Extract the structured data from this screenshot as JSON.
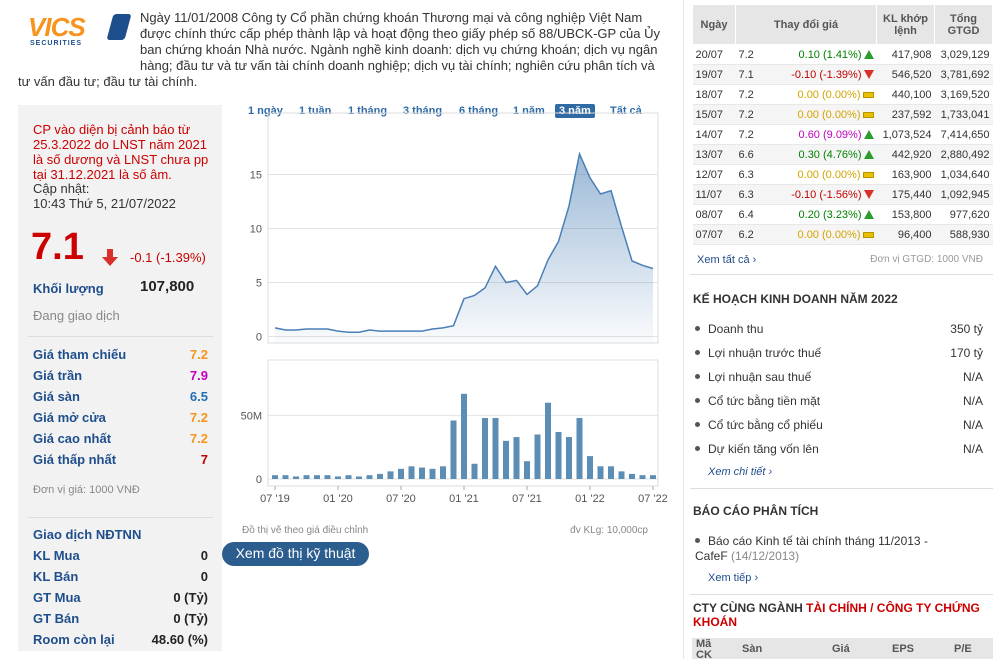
{
  "logo": {
    "name": "VICS",
    "tagline": "SECURITIES"
  },
  "intro": "Ngày 11/01/2008 Công ty Cổ phần chứng khoán Thương mại và công nghiệp Việt Nam được chính thức cấp phép thành lập và hoạt động theo giấy phép số 88/UBCK-GP của Ủy ban chứng khoán Nhà nước. Ngành nghề kinh doanh: dịch vụ chứng khoán; dịch vụ ngân hàng; đầu tư và tư vấn tài chính doanh nghiệp; dịch vụ tài chính; nghiên cứu phân tích và tư vấn đầu tư; đầu tư tài chính.",
  "stock": {
    "warning": "CP vào diện bị cảnh báo từ 25.3.2022 do LNST năm 2021 là số dương và LNST chưa pp tại 31.12.2021 là số âm.",
    "updated_label": "Cập nhật:",
    "updated_time": "10:43 Thứ 5, 21/07/2022",
    "price": "7.1",
    "change": "-0.1 (-1.39%)",
    "volume_label": "Khối lượng",
    "volume": "107,800",
    "status": "Đang giao dịch",
    "prices": [
      {
        "label": "Giá tham chiếu",
        "value": "7.2",
        "color": "#f7941d"
      },
      {
        "label": "Giá trần",
        "value": "7.9",
        "color": "#c000c0"
      },
      {
        "label": "Giá sàn",
        "value": "6.5",
        "color": "#1f6fb5"
      },
      {
        "label": "Giá mở cửa",
        "value": "7.2",
        "color": "#f7941d"
      },
      {
        "label": "Giá cao nhất",
        "value": "7.2",
        "color": "#f7941d"
      },
      {
        "label": "Giá thấp nhất",
        "value": "7",
        "color": "#c00000"
      }
    ],
    "unit": "Đơn vị giá: 1000 VNĐ",
    "foreign": {
      "title": "Giao dịch NĐTNN",
      "rows": [
        {
          "label": "KL Mua",
          "value": "0"
        },
        {
          "label": "KL Bán",
          "value": "0"
        },
        {
          "label": "GT Mua",
          "value": "0 (Tỷ)"
        },
        {
          "label": "GT Bán",
          "value": "0 (Tỷ)"
        },
        {
          "label": "Room còn lại",
          "value": "48.60 (%)"
        }
      ]
    }
  },
  "tabs": {
    "items": [
      "1 ngày",
      "1 tuần",
      "1 tháng",
      "3 tháng",
      "6 tháng",
      "1 năm",
      "3 năm",
      "Tất cả"
    ],
    "selected": 6
  },
  "chart_data": [
    {
      "type": "area",
      "color": "#4a7fb5",
      "values": [
        0.8,
        0.6,
        0.6,
        0.7,
        0.7,
        0.7,
        0.5,
        0.4,
        0.4,
        0.6,
        0.5,
        0.5,
        0.5,
        0.5,
        0.5,
        0.7,
        0.8,
        1.0,
        3.5,
        3.8,
        4.5,
        6.5,
        5.0,
        5.2,
        3.9,
        4.7,
        7.1,
        8.8,
        12.1,
        16.9,
        14.7,
        13.2,
        13.5,
        10.2,
        7.0,
        6.6,
        6.3
      ],
      "ylim": [
        -0.6,
        20.7
      ],
      "yticks": [
        0,
        5,
        10,
        15
      ],
      "grid": true
    },
    {
      "type": "bar",
      "color": "#5b8db5",
      "categories": [
        "07 '19",
        null,
        null,
        null,
        null,
        null,
        "01 '20",
        null,
        null,
        null,
        null,
        null,
        "07 '20",
        null,
        null,
        null,
        null,
        null,
        "01 '21",
        null,
        null,
        null,
        null,
        null,
        "07 '21",
        null,
        null,
        null,
        null,
        null,
        "01 '22",
        null,
        null,
        null,
        null,
        null,
        "07 '22"
      ],
      "values": [
        3,
        3,
        2,
        3,
        3,
        3,
        2,
        3,
        2,
        3,
        4,
        6,
        8,
        10,
        9,
        8,
        10,
        46,
        67,
        12,
        48,
        48,
        30,
        33,
        14,
        35,
        60,
        37,
        33,
        48,
        18,
        10,
        10,
        6,
        4,
        3,
        3
      ],
      "ylim": [
        -5.5,
        93.6
      ],
      "yticks": [
        0,
        {
          "value": 50,
          "label": "50M"
        }
      ],
      "grid": true
    }
  ],
  "chart_notes": {
    "left": "Đồ thị vẽ theo giá điều chỉnh",
    "right": "đv KLg: 10,000cp",
    "button": "Xem đồ thị kỹ thuật"
  },
  "trading": {
    "headers": [
      "Ngày",
      "Thay đổi giá",
      "KL khớp lệnh",
      "Tổng GTGD"
    ],
    "rows": [
      {
        "cells": [
          "20/07",
          "7.2",
          "0.10 (1.41%)",
          "417,908",
          "3,029,129"
        ],
        "color": "#008000"
      },
      {
        "cells": [
          "19/07",
          "7.1",
          "-0.10 (-1.39%)",
          "546,520",
          "3,781,692"
        ],
        "color": "#c00000"
      },
      {
        "cells": [
          "18/07",
          "7.2",
          "0.00 (0.00%)",
          "440,100",
          "3,169,520"
        ],
        "color": "#d4a300"
      },
      {
        "cells": [
          "15/07",
          "7.2",
          "0.00 (0.00%)",
          "237,592",
          "1,733,041"
        ],
        "color": "#d4a300"
      },
      {
        "cells": [
          "14/07",
          "7.2",
          "0.60 (9.09%)",
          "1,073,524",
          "7,414,650"
        ],
        "color": "#c000c0"
      },
      {
        "cells": [
          "13/07",
          "6.6",
          "0.30 (4.76%)",
          "442,920",
          "2,880,492"
        ],
        "color": "#008000"
      },
      {
        "cells": [
          "12/07",
          "6.3",
          "0.00 (0.00%)",
          "163,900",
          "1,034,640"
        ],
        "color": "#d4a300"
      },
      {
        "cells": [
          "11/07",
          "6.3",
          "-0.10 (-1.56%)",
          "175,440",
          "1,092,945"
        ],
        "color": "#c00000"
      },
      {
        "cells": [
          "08/07",
          "6.4",
          "0.20 (3.23%)",
          "153,800",
          "977,620"
        ],
        "color": "#008000"
      },
      {
        "cells": [
          "07/07",
          "6.2",
          "0.00 (0.00%)",
          "96,400",
          "588,930"
        ],
        "color": "#d4a300"
      }
    ],
    "more": "Xem tất cả",
    "unit": "Đơn vị GTGD: 1000 VNĐ"
  },
  "plan": {
    "title": "KẾ HOẠCH KINH DOANH NĂM 2022",
    "rows": [
      {
        "label": "Doanh thu",
        "value": "350 tỷ"
      },
      {
        "label": "Lợi nhuận trước thuế",
        "value": "170 tỷ"
      },
      {
        "label": "Lợi nhuận sau thuế",
        "value": "N/A"
      },
      {
        "label": "Cổ tức bằng tiền mặt",
        "value": "N/A"
      },
      {
        "label": "Cổ tức bằng cổ phiếu",
        "value": "N/A"
      },
      {
        "label": "Dự kiến tăng vốn lên",
        "value": "N/A"
      }
    ],
    "more": "Xem chi tiết"
  },
  "reports": {
    "title": "BÁO CÁO PHÂN TÍCH",
    "items": [
      {
        "title": "Báo cáo Kinh tế tài chính tháng 11/2013 - CafeF",
        "date": "(14/12/2013)"
      }
    ],
    "more": "Xem tiếp"
  },
  "peers": {
    "title": "CTY CÙNG NGÀNH",
    "sector": "TÀI CHÍNH / CÔNG TY CHỨNG KHOÁN",
    "headers": [
      "Mã CK",
      "Sàn",
      "Giá",
      "EPS",
      "P/E"
    ]
  }
}
